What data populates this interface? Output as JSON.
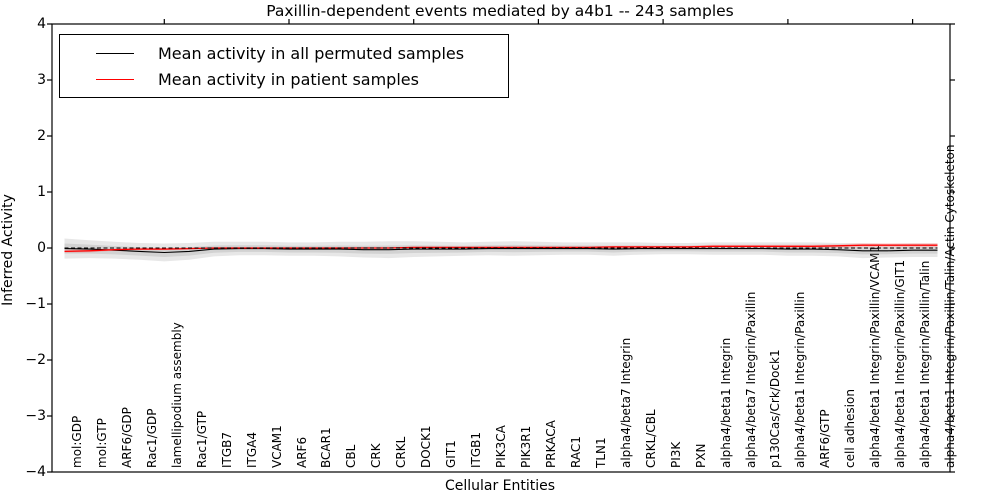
{
  "title": "Paxillin-dependent events mediated by a4b1 -- 243 samples",
  "chart_data": {
    "type": "line",
    "title": "Paxillin-dependent events mediated by a4b1 -- 243 samples",
    "xlabel": "Cellular Entities",
    "ylabel": "Inferred Activity",
    "ylim": [
      -4,
      4
    ],
    "yticks": [
      4,
      3,
      2,
      1,
      0,
      -1,
      -2,
      -3,
      -4
    ],
    "top_axis_ticks_at_x": [
      5,
      10,
      15,
      20,
      25,
      30,
      35
    ],
    "grid": false,
    "legend_position": "upper left",
    "zero_reference_line": {
      "style": "dashed",
      "color": "#000000",
      "y": 0
    },
    "categories": [
      "mol:GDP",
      "mol:GTP",
      "ARF6/GDP",
      "Rac1/GDP",
      "lamellipodium assembly",
      "Rac1/GTP",
      "ITGB7",
      "ITGA4",
      "VCAM1",
      "ARF6",
      "BCAR1",
      "CBL",
      "CRK",
      "CRKL",
      "DOCK1",
      "GIT1",
      "ITGB1",
      "PIK3CA",
      "PIK3R1",
      "PRKACA",
      "RAC1",
      "TLN1",
      "alpha4/beta7 Integrin",
      "CRKL/CBL",
      "PI3K",
      "PXN",
      "alpha4/beta1 Integrin",
      "alpha4/beta7 Integrin/Paxillin",
      "p130Cas/Crk/Dock1",
      "alpha4/beta1 Integrin/Paxillin",
      "ARF6/GTP",
      "cell adhesion",
      "alpha4/beta1 Integrin/Paxillin/VCAM1",
      "alpha4/beta1 Integrin/Paxillin/GIT1",
      "alpha4/beta1 Integrin/Paxillin/Talin",
      "alpha4/beta1 Integrin/Paxillin/Talin/Actin Cytoskeleton"
    ],
    "series": [
      {
        "name": "Mean activity in all permuted samples",
        "color": "#000000",
        "values": [
          -0.01,
          -0.02,
          -0.04,
          -0.06,
          -0.08,
          -0.06,
          -0.02,
          -0.01,
          -0.01,
          -0.02,
          -0.02,
          -0.02,
          -0.03,
          -0.03,
          -0.02,
          -0.02,
          -0.02,
          -0.01,
          -0.01,
          -0.01,
          -0.01,
          -0.01,
          -0.02,
          -0.01,
          -0.01,
          -0.01,
          -0.01,
          -0.01,
          -0.01,
          -0.02,
          -0.02,
          -0.03,
          -0.05,
          -0.05,
          -0.04,
          -0.04
        ],
        "band_half_width": [
          0.18,
          0.16,
          0.15,
          0.15,
          0.16,
          0.15,
          0.13,
          0.12,
          0.12,
          0.12,
          0.12,
          0.13,
          0.14,
          0.15,
          0.14,
          0.13,
          0.12,
          0.12,
          0.13,
          0.12,
          0.11,
          0.11,
          0.12,
          0.11,
          0.1,
          0.1,
          0.11,
          0.11,
          0.11,
          0.12,
          0.12,
          0.12,
          0.13,
          0.12,
          0.12,
          0.12
        ],
        "band_color": "#888888"
      },
      {
        "name": "Mean activity in patient samples",
        "color": "#ff0000",
        "values": [
          -0.06,
          -0.05,
          -0.03,
          -0.02,
          -0.02,
          -0.01,
          0.0,
          0.0,
          0.0,
          0.0,
          0.0,
          0.0,
          0.0,
          0.0,
          0.01,
          0.01,
          0.01,
          0.01,
          0.01,
          0.01,
          0.01,
          0.01,
          0.02,
          0.02,
          0.02,
          0.02,
          0.03,
          0.03,
          0.03,
          0.03,
          0.03,
          0.04,
          0.05,
          0.05,
          0.05,
          0.05
        ],
        "band_half_width": [
          0.03,
          0.03,
          0.02,
          0.02,
          0.02,
          0.02,
          0.015,
          0.015,
          0.015,
          0.015,
          0.015,
          0.015,
          0.015,
          0.015,
          0.015,
          0.015,
          0.015,
          0.015,
          0.015,
          0.015,
          0.015,
          0.015,
          0.02,
          0.02,
          0.02,
          0.02,
          0.03,
          0.03,
          0.03,
          0.03,
          0.03,
          0.03,
          0.04,
          0.04,
          0.04,
          0.04
        ],
        "band_color": "#ff4444"
      }
    ]
  },
  "legend": {
    "items": [
      {
        "label": "Mean activity in all permuted samples",
        "color": "#000000"
      },
      {
        "label": "Mean activity in patient samples",
        "color": "#ff0000"
      }
    ]
  },
  "colors": {
    "background": "#ffffff",
    "axis": "#000000",
    "permuted_line": "#000000",
    "patient_line": "#ff0000"
  }
}
